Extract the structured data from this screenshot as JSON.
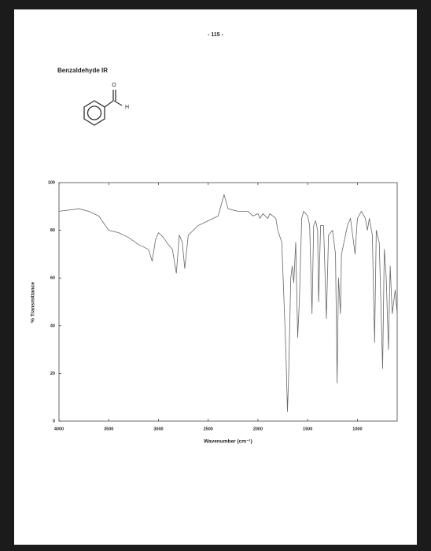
{
  "page": {
    "number": "- 115 -"
  },
  "structure": {
    "oxygen": "O",
    "hydrogen": "H"
  },
  "chart_data": {
    "type": "line",
    "title": "Benzaldehyde IR",
    "x_label": "Wavenumber (cm⁻¹)",
    "y_label": "% Transmittance",
    "x": [
      4000,
      3800,
      3700,
      3600,
      3500,
      3400,
      3300,
      3200,
      3100,
      3063,
      3030,
      3000,
      2950,
      2900,
      2860,
      2820,
      2790,
      2760,
      2736,
      2700,
      2600,
      2500,
      2400,
      2340,
      2300,
      2200,
      2100,
      2050,
      2000,
      1980,
      1950,
      1900,
      1880,
      1820,
      1800,
      1760,
      1720,
      1703,
      1690,
      1670,
      1655,
      1640,
      1620,
      1600,
      1584,
      1560,
      1540,
      1500,
      1480,
      1456,
      1440,
      1420,
      1400,
      1390,
      1370,
      1340,
      1312,
      1290,
      1250,
      1220,
      1204,
      1190,
      1170,
      1160,
      1100,
      1070,
      1023,
      1000,
      960,
      920,
      900,
      880,
      850,
      827,
      810,
      780,
      746,
      730,
      710,
      688,
      670,
      650,
      620,
      600
    ],
    "values": [
      88,
      89,
      88,
      86,
      80,
      79,
      77,
      74,
      72,
      67,
      76,
      79,
      77,
      74,
      72,
      62,
      78,
      75,
      64,
      78,
      82,
      84,
      86,
      95,
      89,
      88,
      88,
      86,
      87,
      85,
      87,
      85,
      87,
      85,
      80,
      75,
      30,
      4,
      20,
      60,
      65,
      58,
      75,
      35,
      50,
      85,
      88,
      86,
      82,
      45,
      82,
      84,
      80,
      50,
      82,
      82,
      43,
      78,
      80,
      70,
      16,
      60,
      45,
      70,
      82,
      85,
      70,
      85,
      88,
      85,
      80,
      85,
      78,
      33,
      80,
      75,
      22,
      72,
      60,
      30,
      65,
      45,
      55,
      45
    ],
    "color": "#666666",
    "xlim": [
      4000,
      600
    ],
    "ylim": [
      0,
      100
    ],
    "xticks": [
      4000,
      3500,
      3000,
      2500,
      2000,
      1500,
      1000
    ],
    "yticks": [
      0,
      20,
      40,
      60,
      80,
      100
    ]
  }
}
